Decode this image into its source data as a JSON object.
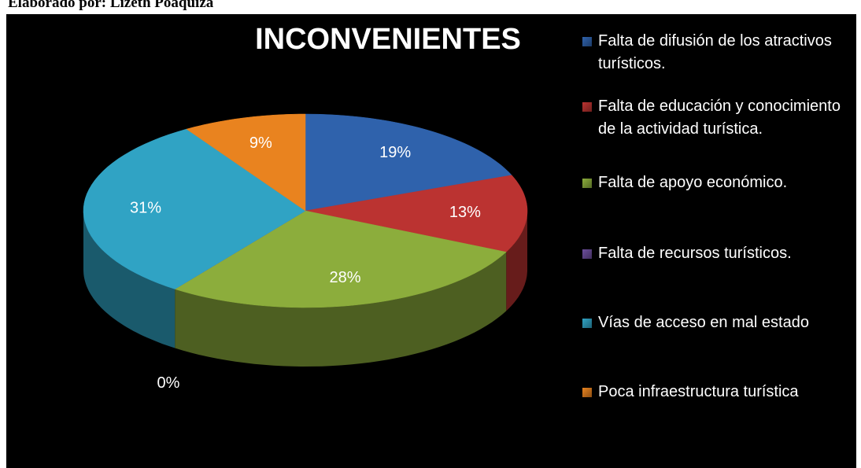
{
  "caption": "Elaborado por: Lizeth Poaquiza",
  "chart_data": {
    "type": "pie",
    "title": "INCONVENIENTES",
    "categories": [
      "Falta de difusión de los atractivos turísticos.",
      "Falta de educación y conocimiento de la actividad turística.",
      "Falta de apoyo económico.",
      "Falta de recursos turísticos.",
      "Vías de acceso en mal estado",
      "Poca infraestructura turística"
    ],
    "values": [
      19,
      13,
      28,
      0,
      31,
      9
    ],
    "value_labels": [
      "19%",
      "13%",
      "28%",
      "0%",
      "31%",
      "9%"
    ],
    "colors": [
      "#2f62ac",
      "#bb3331",
      "#8cad3c",
      "#6c4e9c",
      "#30a3c4",
      "#e9831f"
    ],
    "legend": "right"
  }
}
